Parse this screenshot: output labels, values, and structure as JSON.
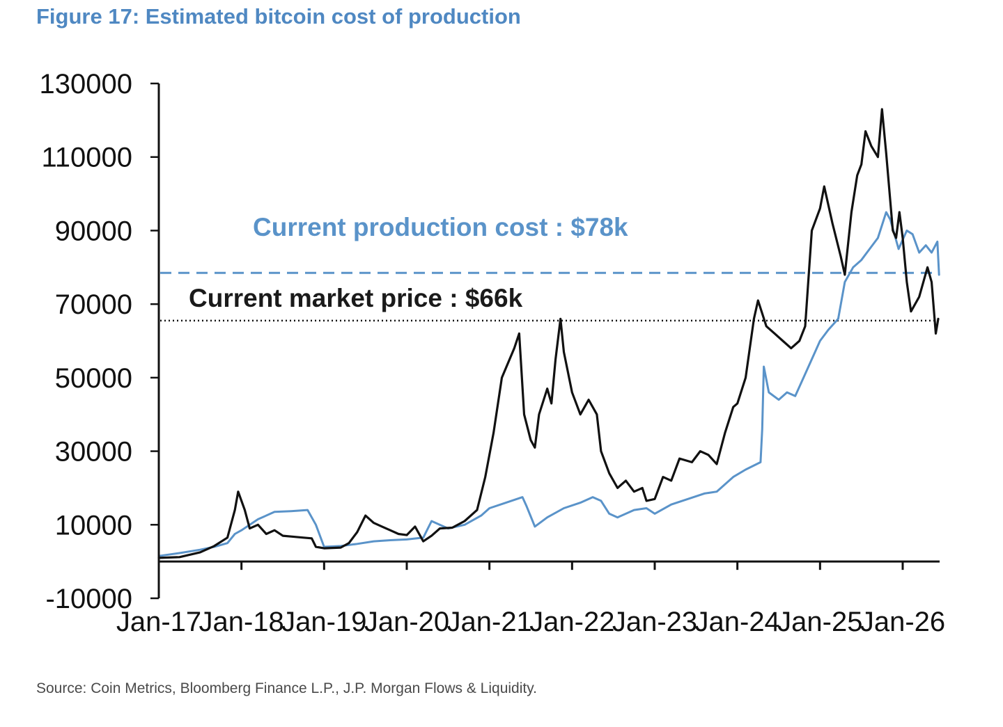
{
  "figure": {
    "title": "Figure 17: Estimated bitcoin cost of production",
    "source": "Source: Coin Metrics, Bloomberg Finance L.P., J.P. Morgan Flows & Liquidity."
  },
  "colors": {
    "title": "#4f88c2",
    "production_cost": "#5a93c9",
    "market_price": "#111111",
    "axis": "#111111"
  },
  "chart_data": {
    "type": "line",
    "ylim": [
      -10000,
      130000
    ],
    "yticks": [
      -10000,
      10000,
      30000,
      50000,
      70000,
      90000,
      110000,
      130000
    ],
    "ytick_labels": [
      "-10000",
      "10000",
      "30000",
      "50000",
      "70000",
      "90000",
      "110000",
      "130000"
    ],
    "xlim": [
      2017.0,
      2026.45
    ],
    "xticks": [
      2017,
      2018,
      2019,
      2020,
      2021,
      2022,
      2023,
      2024,
      2025,
      2026
    ],
    "xtick_labels": [
      "Jan-17",
      "Jan-18",
      "Jan-19",
      "Jan-20",
      "Jan-21",
      "Jan-22",
      "Jan-23",
      "Jan-24",
      "Jan-25",
      "Jan-26"
    ],
    "grid": false,
    "legend": "none",
    "series": [
      {
        "key": "market_price",
        "style": "solid-black",
        "points": [
          [
            2017.0,
            1000
          ],
          [
            2017.25,
            1200
          ],
          [
            2017.5,
            2500
          ],
          [
            2017.67,
            4200
          ],
          [
            2017.83,
            6500
          ],
          [
            2017.92,
            14000
          ],
          [
            2017.96,
            19000
          ],
          [
            2018.04,
            14000
          ],
          [
            2018.1,
            9000
          ],
          [
            2018.2,
            10000
          ],
          [
            2018.3,
            7500
          ],
          [
            2018.4,
            8500
          ],
          [
            2018.5,
            7000
          ],
          [
            2018.6,
            6800
          ],
          [
            2018.75,
            6500
          ],
          [
            2018.85,
            6300
          ],
          [
            2018.9,
            4000
          ],
          [
            2019.0,
            3600
          ],
          [
            2019.2,
            3800
          ],
          [
            2019.3,
            5000
          ],
          [
            2019.4,
            8000
          ],
          [
            2019.5,
            12500
          ],
          [
            2019.6,
            10500
          ],
          [
            2019.7,
            9500
          ],
          [
            2019.8,
            8500
          ],
          [
            2019.9,
            7500
          ],
          [
            2020.0,
            7200
          ],
          [
            2020.1,
            9500
          ],
          [
            2020.2,
            5500
          ],
          [
            2020.3,
            7000
          ],
          [
            2020.4,
            9000
          ],
          [
            2020.55,
            9200
          ],
          [
            2020.7,
            11000
          ],
          [
            2020.85,
            14000
          ],
          [
            2020.95,
            23000
          ],
          [
            2021.05,
            35000
          ],
          [
            2021.15,
            50000
          ],
          [
            2021.3,
            58000
          ],
          [
            2021.36,
            62000
          ],
          [
            2021.42,
            40000
          ],
          [
            2021.5,
            33000
          ],
          [
            2021.55,
            31000
          ],
          [
            2021.6,
            40000
          ],
          [
            2021.7,
            47000
          ],
          [
            2021.75,
            43000
          ],
          [
            2021.8,
            55000
          ],
          [
            2021.86,
            66000
          ],
          [
            2021.9,
            57000
          ],
          [
            2022.0,
            46000
          ],
          [
            2022.1,
            40000
          ],
          [
            2022.2,
            44000
          ],
          [
            2022.3,
            40000
          ],
          [
            2022.35,
            30000
          ],
          [
            2022.45,
            24000
          ],
          [
            2022.55,
            20000
          ],
          [
            2022.65,
            22000
          ],
          [
            2022.75,
            19000
          ],
          [
            2022.85,
            20000
          ],
          [
            2022.9,
            16500
          ],
          [
            2023.0,
            17000
          ],
          [
            2023.1,
            23000
          ],
          [
            2023.2,
            22000
          ],
          [
            2023.3,
            28000
          ],
          [
            2023.45,
            27000
          ],
          [
            2023.55,
            30000
          ],
          [
            2023.65,
            29000
          ],
          [
            2023.75,
            26500
          ],
          [
            2023.85,
            35000
          ],
          [
            2023.95,
            42000
          ],
          [
            2024.0,
            43000
          ],
          [
            2024.1,
            50000
          ],
          [
            2024.2,
            66000
          ],
          [
            2024.25,
            71000
          ],
          [
            2024.35,
            64000
          ],
          [
            2024.45,
            62000
          ],
          [
            2024.55,
            60000
          ],
          [
            2024.65,
            58000
          ],
          [
            2024.75,
            60000
          ],
          [
            2024.82,
            64000
          ],
          [
            2024.9,
            90000
          ],
          [
            2025.0,
            96000
          ],
          [
            2025.05,
            102000
          ],
          [
            2025.15,
            92000
          ],
          [
            2025.25,
            83000
          ],
          [
            2025.3,
            78000
          ],
          [
            2025.38,
            95000
          ],
          [
            2025.45,
            105000
          ],
          [
            2025.5,
            108000
          ],
          [
            2025.55,
            117000
          ],
          [
            2025.62,
            113000
          ],
          [
            2025.7,
            110000
          ],
          [
            2025.75,
            123000
          ],
          [
            2025.8,
            111000
          ],
          [
            2025.88,
            90000
          ],
          [
            2025.92,
            88000
          ],
          [
            2025.96,
            95000
          ],
          [
            2026.0,
            88000
          ],
          [
            2026.05,
            76000
          ],
          [
            2026.1,
            68000
          ],
          [
            2026.2,
            72000
          ],
          [
            2026.3,
            80000
          ],
          [
            2026.35,
            76000
          ],
          [
            2026.4,
            62000
          ],
          [
            2026.43,
            66000
          ]
        ]
      },
      {
        "key": "production_cost",
        "style": "solid-blue",
        "points": [
          [
            2017.0,
            1500
          ],
          [
            2017.25,
            2300
          ],
          [
            2017.5,
            3200
          ],
          [
            2017.67,
            4000
          ],
          [
            2017.83,
            5000
          ],
          [
            2017.92,
            7500
          ],
          [
            2018.0,
            8500
          ],
          [
            2018.2,
            11500
          ],
          [
            2018.4,
            13500
          ],
          [
            2018.6,
            13700
          ],
          [
            2018.8,
            14000
          ],
          [
            2018.9,
            10000
          ],
          [
            2019.0,
            4000
          ],
          [
            2019.2,
            4200
          ],
          [
            2019.4,
            4800
          ],
          [
            2019.6,
            5500
          ],
          [
            2019.8,
            5800
          ],
          [
            2020.0,
            6000
          ],
          [
            2020.2,
            6500
          ],
          [
            2020.3,
            11000
          ],
          [
            2020.5,
            9000
          ],
          [
            2020.7,
            10000
          ],
          [
            2020.9,
            12500
          ],
          [
            2021.0,
            14500
          ],
          [
            2021.2,
            16000
          ],
          [
            2021.4,
            17500
          ],
          [
            2021.45,
            15000
          ],
          [
            2021.55,
            9500
          ],
          [
            2021.7,
            12000
          ],
          [
            2021.9,
            14500
          ],
          [
            2022.1,
            16000
          ],
          [
            2022.25,
            17500
          ],
          [
            2022.35,
            16500
          ],
          [
            2022.45,
            13000
          ],
          [
            2022.55,
            12000
          ],
          [
            2022.75,
            14000
          ],
          [
            2022.9,
            14500
          ],
          [
            2023.0,
            13000
          ],
          [
            2023.2,
            15500
          ],
          [
            2023.4,
            17000
          ],
          [
            2023.6,
            18500
          ],
          [
            2023.75,
            19000
          ],
          [
            2023.85,
            21000
          ],
          [
            2023.95,
            23000
          ],
          [
            2024.1,
            25000
          ],
          [
            2024.28,
            27000
          ],
          [
            2024.3,
            36000
          ],
          [
            2024.32,
            53000
          ],
          [
            2024.38,
            46000
          ],
          [
            2024.5,
            44000
          ],
          [
            2024.6,
            46000
          ],
          [
            2024.7,
            45000
          ],
          [
            2024.8,
            50000
          ],
          [
            2024.9,
            55000
          ],
          [
            2025.0,
            60000
          ],
          [
            2025.1,
            63000
          ],
          [
            2025.22,
            66000
          ],
          [
            2025.3,
            76000
          ],
          [
            2025.4,
            80000
          ],
          [
            2025.5,
            82000
          ],
          [
            2025.6,
            85000
          ],
          [
            2025.7,
            88000
          ],
          [
            2025.8,
            95000
          ],
          [
            2025.85,
            93000
          ],
          [
            2025.95,
            85000
          ],
          [
            2026.05,
            90000
          ],
          [
            2026.12,
            89000
          ],
          [
            2026.2,
            84000
          ],
          [
            2026.28,
            86000
          ],
          [
            2026.35,
            84000
          ],
          [
            2026.42,
            87000
          ],
          [
            2026.44,
            78000
          ]
        ]
      }
    ],
    "reference_lines": [
      {
        "key": "cost_ref",
        "value": 78500,
        "style": "dashed",
        "label": "Current production cost : $78k"
      },
      {
        "key": "price_ref",
        "value": 65500,
        "style": "dotted",
        "label": "Current market price : $66k"
      }
    ]
  }
}
